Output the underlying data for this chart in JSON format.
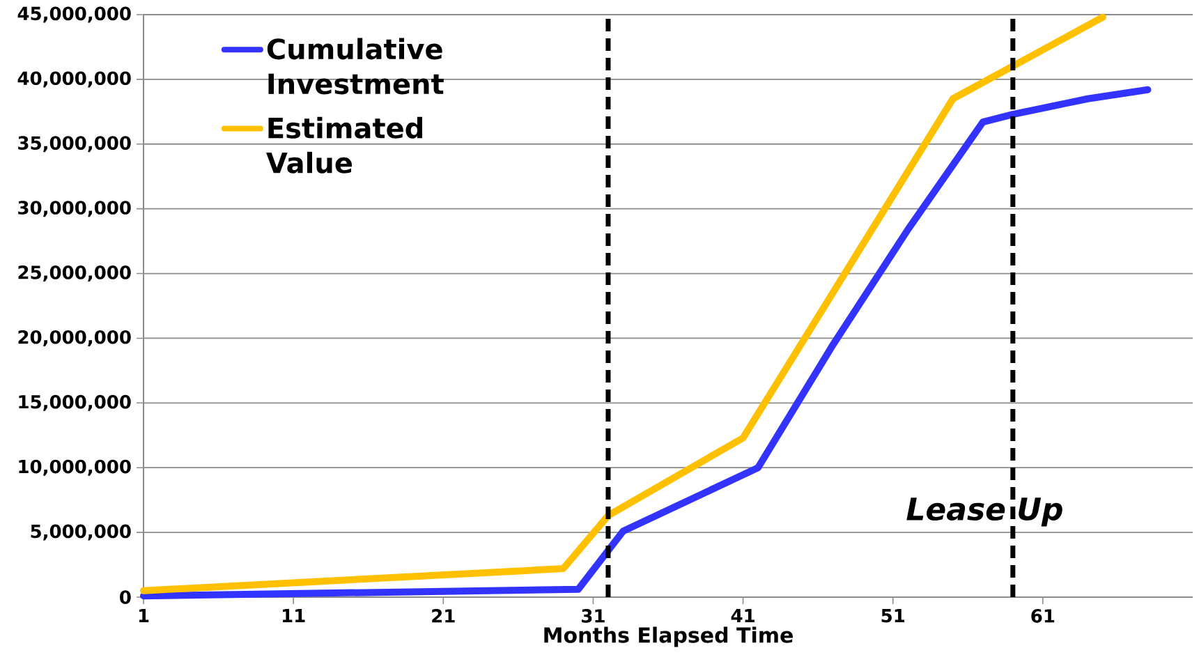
{
  "chart_data": {
    "type": "line",
    "xlabel": "Months Elapsed Time",
    "xlim": [
      1,
      71
    ],
    "xticks": [
      1,
      11,
      21,
      31,
      41,
      51,
      61
    ],
    "ylim": [
      0,
      45000000
    ],
    "yticks": [
      {
        "value": 0,
        "label": "0"
      },
      {
        "value": 5000000,
        "label": "5,000,000"
      },
      {
        "value": 10000000,
        "label": "10,000,000"
      },
      {
        "value": 15000000,
        "label": "15,000,000"
      },
      {
        "value": 20000000,
        "label": "20,000,000"
      },
      {
        "value": 25000000,
        "label": "25,000,000"
      },
      {
        "value": 30000000,
        "label": "30,000,000"
      },
      {
        "value": 35000000,
        "label": "35,000,000"
      },
      {
        "value": 40000000,
        "label": "40,000,000"
      },
      {
        "value": 45000000,
        "label": "45,000,000"
      }
    ],
    "grid": "y",
    "legend": "top left",
    "marker": "none",
    "line_style": "solid",
    "series": [
      {
        "name": "Cumulative Investment",
        "color": "#3333ff",
        "x": [
          1,
          30,
          33,
          42,
          47,
          52,
          57,
          59,
          64,
          68
        ],
        "values": [
          100000,
          600000,
          5100000,
          10000000,
          19500000,
          28400000,
          36700000,
          37300000,
          38500000,
          39200000
        ]
      },
      {
        "name": "Estimated Value",
        "color": "#ffc000",
        "x": [
          1,
          29,
          32,
          41,
          55,
          65
        ],
        "values": [
          500000,
          2200000,
          6300000,
          12300000,
          38500000,
          44800000
        ]
      }
    ],
    "ref_lines": [
      {
        "axis": "x",
        "value": 32,
        "color": "#000000",
        "line_style": "dashed"
      },
      {
        "axis": "x",
        "value": 59,
        "color": "#000000",
        "line_style": "dashed"
      }
    ],
    "annotations": [
      "Lease Up"
    ]
  }
}
